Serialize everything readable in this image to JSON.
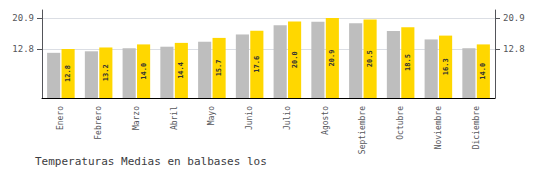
{
  "chart_data": {
    "type": "bar",
    "title": "Temperaturas Medias en balbases los",
    "categories": [
      "Enero",
      "Febrero",
      "Marzo",
      "Abril",
      "Mayo",
      "Junio",
      "Julio",
      "Agosto",
      "Septiembre",
      "Octubre",
      "Noviembre",
      "Diciembre"
    ],
    "series": [
      {
        "color": "#BEBEBE",
        "values": [
          11.8,
          12.2,
          13.0,
          13.4,
          14.7,
          16.6,
          19.0,
          19.9,
          19.5,
          17.5,
          15.3,
          13.0
        ]
      },
      {
        "color": "#FFD700",
        "values": [
          12.8,
          13.2,
          14.0,
          14.4,
          15.7,
          17.6,
          20.0,
          20.9,
          20.5,
          18.5,
          16.3,
          14.0
        ],
        "data_labels": true,
        "value_labels": [
          "12.8",
          "13.2",
          "14.0",
          "14.4",
          "15.7",
          "17.6",
          "20.0",
          "20.9",
          "20.5",
          "18.5",
          "16.3",
          "14.0"
        ]
      }
    ],
    "ylim": [
      0,
      22.99
    ],
    "yticks": [
      12.8,
      20.9
    ],
    "y2lim": [
      0,
      22.99
    ],
    "y2ticks": [
      12.8,
      20.9
    ],
    "grid": true
  }
}
